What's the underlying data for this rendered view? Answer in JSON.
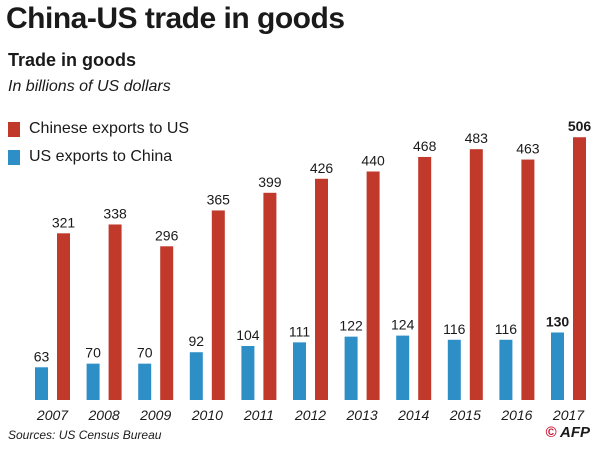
{
  "header": {
    "title": "China-US trade in goods",
    "subtitle": "Trade in goods",
    "units": "In billions of US dollars"
  },
  "colors": {
    "exports_china": "#c0392b",
    "exports_us": "#2e8fc7"
  },
  "chart_data": {
    "type": "bar",
    "title": "China-US trade in goods",
    "subtitle": "Trade in goods",
    "ylabel": "In billions of US dollars",
    "xlabel": "",
    "categories": [
      "2007",
      "2008",
      "2009",
      "2010",
      "2011",
      "2012",
      "2013",
      "2014",
      "2015",
      "2016",
      "2017"
    ],
    "series": [
      {
        "name": "US exports to China",
        "color": "#2e8fc7",
        "values": [
          63,
          70,
          70,
          92,
          104,
          111,
          122,
          124,
          116,
          116,
          130
        ]
      },
      {
        "name": "Chinese exports to US",
        "color": "#c0392b",
        "values": [
          321,
          338,
          296,
          365,
          399,
          426,
          440,
          468,
          483,
          463,
          506
        ]
      }
    ],
    "highlight_category": "2017",
    "ylim": [
      0,
      520
    ],
    "grid": false,
    "legend": "top-left"
  },
  "footer": {
    "source": "Sources: US Census Bureau",
    "credit": "AFP",
    "credit_mark": "©"
  }
}
